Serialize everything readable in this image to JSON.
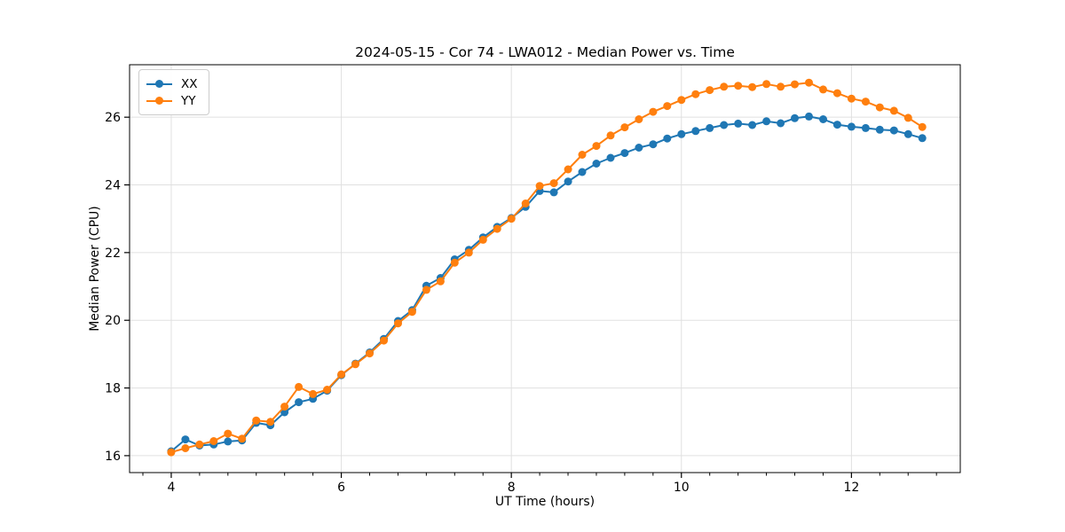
{
  "chart_data": {
    "type": "line",
    "title": "2024-05-15 - Cor 74 - LWA012 - Median Power vs. Time",
    "xlabel": "UT Time (hours)",
    "ylabel": "Median Power (CPU)",
    "xlim": [
      3.51,
      13.28
    ],
    "ylim": [
      15.5,
      27.55
    ],
    "x_ticks": [
      4,
      6,
      8,
      10,
      12
    ],
    "y_ticks": [
      16,
      18,
      20,
      22,
      24,
      26
    ],
    "x_minor_tick_step": 0.3333,
    "grid": true,
    "legend_position": "upper-left",
    "x": [
      4.0,
      4.167,
      4.333,
      4.5,
      4.667,
      4.833,
      5.0,
      5.167,
      5.333,
      5.5,
      5.667,
      5.833,
      6.0,
      6.167,
      6.333,
      6.5,
      6.667,
      6.833,
      7.0,
      7.167,
      7.333,
      7.5,
      7.667,
      7.833,
      8.0,
      8.167,
      8.333,
      8.5,
      8.667,
      8.833,
      9.0,
      9.167,
      9.333,
      9.5,
      9.667,
      9.833,
      10.0,
      10.167,
      10.333,
      10.5,
      10.667,
      10.833,
      11.0,
      11.167,
      11.333,
      11.5,
      11.667,
      11.833,
      12.0,
      12.167,
      12.333,
      12.5,
      12.667,
      12.833
    ],
    "series": [
      {
        "name": "XX",
        "color": "#1f77b4",
        "values": [
          16.13,
          16.48,
          16.3,
          16.33,
          16.42,
          16.45,
          16.97,
          16.9,
          17.28,
          17.58,
          17.68,
          17.92,
          18.38,
          18.72,
          19.05,
          19.45,
          19.98,
          20.3,
          21.02,
          21.25,
          21.8,
          22.08,
          22.45,
          22.76,
          23.02,
          23.35,
          23.82,
          23.78,
          24.1,
          24.38,
          24.63,
          24.8,
          24.94,
          25.1,
          25.2,
          25.37,
          25.5,
          25.59,
          25.68,
          25.77,
          25.81,
          25.77,
          25.88,
          25.82,
          25.97,
          26.02,
          25.94,
          25.78,
          25.72,
          25.68,
          25.63,
          25.61,
          25.5,
          25.38
        ]
      },
      {
        "name": "YY",
        "color": "#ff7f0e",
        "values": [
          16.1,
          16.22,
          16.33,
          16.43,
          16.65,
          16.5,
          17.04,
          17.0,
          17.45,
          18.03,
          17.82,
          17.95,
          18.4,
          18.7,
          19.02,
          19.4,
          19.91,
          20.25,
          20.9,
          21.15,
          21.7,
          22.0,
          22.38,
          22.7,
          23.0,
          23.45,
          23.97,
          24.05,
          24.46,
          24.89,
          25.15,
          25.46,
          25.7,
          25.94,
          26.16,
          26.33,
          26.51,
          26.68,
          26.8,
          26.9,
          26.93,
          26.89,
          26.98,
          26.9,
          26.97,
          27.02,
          26.82,
          26.71,
          26.55,
          26.46,
          26.29,
          26.19,
          25.98,
          25.71
        ]
      }
    ],
    "styles": {
      "grid_color": "#e0e0e0",
      "spine_color": "#000000",
      "tick_color": "#000000",
      "marker_radius": 4.5,
      "line_width": 2
    }
  }
}
